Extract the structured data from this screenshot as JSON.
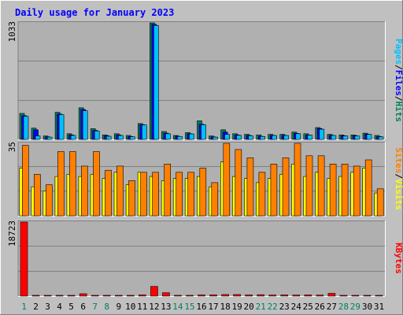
{
  "title": "Daily usage for January 2023",
  "colors": {
    "background": "#c0c0c0",
    "plot_bg": "#b0b0b0",
    "title": "#0000ff",
    "hits": "#00805c",
    "files": "#0000ff",
    "pages": "#00c0ff",
    "visits": "#ffff00",
    "sites": "#ff8000",
    "kbytes": "#ff0000",
    "weekend_label": "#00805c",
    "weekday_label": "#000000"
  },
  "legend": {
    "top": [
      {
        "text": "Pages",
        "color": "#00c0ff"
      },
      {
        "text": "/",
        "color": "#000000"
      },
      {
        "text": "Files",
        "color": "#0000ff"
      },
      {
        "text": "/",
        "color": "#000000"
      },
      {
        "text": "Hits",
        "color": "#00805c"
      }
    ],
    "middle": [
      {
        "text": "Sites",
        "color": "#ff8000"
      },
      {
        "text": "/",
        "color": "#000000"
      },
      {
        "text": "Visits",
        "color": "#ffff00"
      }
    ],
    "bottom": [
      {
        "text": "KBytes",
        "color": "#ff0000"
      }
    ]
  },
  "chart_data": [
    {
      "type": "bar",
      "panel": "top",
      "ymax_label": "1033",
      "ylim": [
        0,
        1033
      ],
      "x": [
        1,
        2,
        3,
        4,
        5,
        6,
        7,
        8,
        9,
        10,
        11,
        12,
        13,
        14,
        15,
        16,
        17,
        18,
        19,
        20,
        21,
        22,
        23,
        24,
        25,
        26,
        27,
        28,
        29,
        30,
        31
      ],
      "series": [
        {
          "name": "Hits",
          "color": "#00805c",
          "values": [
            230,
            100,
            30,
            240,
            50,
            280,
            95,
            40,
            50,
            35,
            140,
            1033,
            70,
            35,
            60,
            165,
            30,
            85,
            50,
            45,
            40,
            45,
            45,
            65,
            50,
            105,
            45,
            40,
            40,
            55,
            35
          ]
        },
        {
          "name": "Files",
          "color": "#0000ff",
          "values": [
            210,
            85,
            22,
            225,
            40,
            265,
            80,
            32,
            40,
            26,
            130,
            1020,
            55,
            28,
            50,
            135,
            22,
            65,
            40,
            36,
            28,
            36,
            36,
            54,
            40,
            96,
            36,
            32,
            32,
            46,
            25
          ]
        },
        {
          "name": "Pages",
          "color": "#00c0ff",
          "values": [
            205,
            30,
            20,
            220,
            35,
            255,
            75,
            28,
            35,
            24,
            128,
            1010,
            50,
            26,
            48,
            130,
            20,
            45,
            36,
            32,
            26,
            34,
            34,
            50,
            38,
            90,
            34,
            30,
            30,
            44,
            22
          ]
        }
      ]
    },
    {
      "type": "bar",
      "panel": "middle",
      "ymax_label": "35",
      "ylim": [
        0,
        35
      ],
      "x": [
        1,
        2,
        3,
        4,
        5,
        6,
        7,
        8,
        9,
        10,
        11,
        12,
        13,
        14,
        15,
        16,
        17,
        18,
        19,
        20,
        21,
        22,
        23,
        24,
        25,
        26,
        27,
        28,
        29,
        30,
        31
      ],
      "series": [
        {
          "name": "Visits",
          "color": "#ffff00",
          "values": [
            23,
            14,
            12,
            19,
            20,
            19,
            20,
            18,
            21,
            15,
            21,
            19,
            17,
            18,
            18,
            19,
            14,
            26,
            19,
            18,
            16,
            18,
            20,
            25,
            19,
            21,
            18,
            19,
            21,
            23,
            11
          ]
        },
        {
          "name": "Sites",
          "color": "#ff8000",
          "values": [
            34,
            20,
            15,
            31,
            31,
            24,
            31,
            22,
            24,
            17,
            21,
            21,
            25,
            21,
            21,
            23,
            16,
            35,
            32,
            28,
            21,
            25,
            28,
            35,
            29,
            29,
            25,
            25,
            24,
            27,
            13
          ]
        }
      ]
    },
    {
      "type": "bar",
      "panel": "bottom",
      "ymax_label": "18723",
      "ylim": [
        0,
        18723
      ],
      "x": [
        1,
        2,
        3,
        4,
        5,
        6,
        7,
        8,
        9,
        10,
        11,
        12,
        13,
        14,
        15,
        16,
        17,
        18,
        19,
        20,
        21,
        22,
        23,
        24,
        25,
        26,
        27,
        28,
        29,
        30,
        31
      ],
      "series": [
        {
          "name": "KBytes",
          "color": "#ff0000",
          "values": [
            18723,
            150,
            150,
            150,
            200,
            600,
            150,
            100,
            150,
            150,
            300,
            2450,
            850,
            150,
            200,
            300,
            300,
            400,
            400,
            300,
            350,
            250,
            300,
            250,
            300,
            250,
            700,
            150,
            150,
            150,
            200
          ]
        }
      ]
    }
  ],
  "x_labels": [
    {
      "text": "1",
      "weekend": true
    },
    {
      "text": "2",
      "weekend": false
    },
    {
      "text": "3",
      "weekend": false
    },
    {
      "text": "4",
      "weekend": false
    },
    {
      "text": "5",
      "weekend": false
    },
    {
      "text": "6",
      "weekend": false
    },
    {
      "text": "7",
      "weekend": true
    },
    {
      "text": "8",
      "weekend": true
    },
    {
      "text": "9",
      "weekend": false
    },
    {
      "text": "10",
      "weekend": false
    },
    {
      "text": "11",
      "weekend": false
    },
    {
      "text": "12",
      "weekend": false
    },
    {
      "text": "13",
      "weekend": false
    },
    {
      "text": "14",
      "weekend": true
    },
    {
      "text": "15",
      "weekend": true
    },
    {
      "text": "16",
      "weekend": false
    },
    {
      "text": "17",
      "weekend": false
    },
    {
      "text": "18",
      "weekend": false
    },
    {
      "text": "19",
      "weekend": false
    },
    {
      "text": "20",
      "weekend": false
    },
    {
      "text": "21",
      "weekend": true
    },
    {
      "text": "22",
      "weekend": true
    },
    {
      "text": "23",
      "weekend": false
    },
    {
      "text": "24",
      "weekend": false
    },
    {
      "text": "25",
      "weekend": false
    },
    {
      "text": "26",
      "weekend": false
    },
    {
      "text": "27",
      "weekend": false
    },
    {
      "text": "28",
      "weekend": true
    },
    {
      "text": "29",
      "weekend": true
    },
    {
      "text": "30",
      "weekend": false
    },
    {
      "text": "31",
      "weekend": false
    }
  ]
}
